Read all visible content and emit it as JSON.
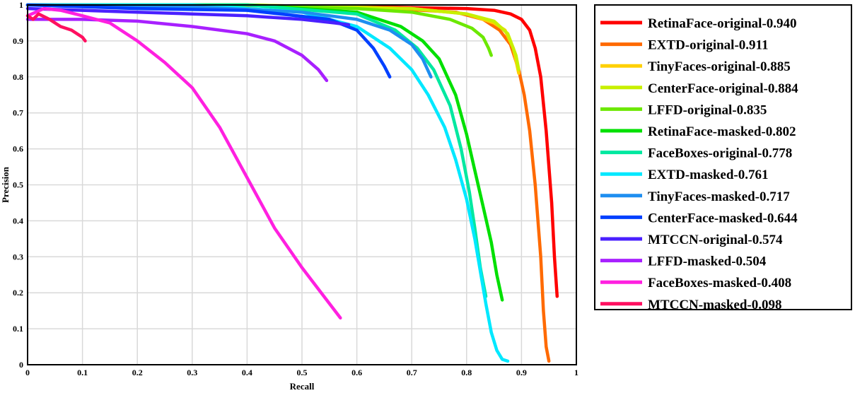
{
  "chart_data": {
    "type": "line",
    "title": "",
    "xlabel": "Recall",
    "ylabel": "Precision",
    "xlim": [
      0,
      1
    ],
    "ylim": [
      0,
      1
    ],
    "xticks": [
      "0",
      "0.1",
      "0.2",
      "0.3",
      "0.4",
      "0.5",
      "0.6",
      "0.7",
      "0.8",
      "0.9",
      "1"
    ],
    "yticks": [
      "0",
      "0.1",
      "0.2",
      "0.3",
      "0.4",
      "0.5",
      "0.6",
      "0.7",
      "0.8",
      "0.9",
      "1"
    ],
    "grid": true,
    "legend_position": "right",
    "series": [
      {
        "name": "RetinaFace-original-0.940",
        "color": "#ff0000",
        "x": [
          0.0,
          0.3,
          0.6,
          0.8,
          0.85,
          0.88,
          0.9,
          0.915,
          0.925,
          0.935,
          0.945,
          0.955,
          0.96,
          0.965
        ],
        "y": [
          1.0,
          1.0,
          0.995,
          0.99,
          0.985,
          0.975,
          0.96,
          0.93,
          0.88,
          0.8,
          0.65,
          0.45,
          0.3,
          0.19
        ]
      },
      {
        "name": "EXTD-original-0.911",
        "color": "#ff6a00",
        "x": [
          0.0,
          0.3,
          0.6,
          0.78,
          0.83,
          0.86,
          0.88,
          0.895,
          0.905,
          0.915,
          0.925,
          0.935,
          0.94,
          0.945,
          0.95
        ],
        "y": [
          1.0,
          1.0,
          0.995,
          0.98,
          0.96,
          0.93,
          0.89,
          0.82,
          0.75,
          0.65,
          0.5,
          0.3,
          0.15,
          0.05,
          0.01
        ]
      },
      {
        "name": "TinyFaces-original-0.885",
        "color": "#ffd000",
        "x": [
          0.0,
          0.4,
          0.7,
          0.8,
          0.85,
          0.87,
          0.885,
          0.895
        ],
        "y": [
          1.0,
          1.0,
          0.99,
          0.975,
          0.95,
          0.93,
          0.88,
          0.81
        ]
      },
      {
        "name": "CenterFace-original-0.884",
        "color": "#c8f000",
        "x": [
          0.0,
          0.4,
          0.7,
          0.8,
          0.85,
          0.875,
          0.89,
          0.895
        ],
        "y": [
          1.0,
          1.0,
          0.99,
          0.975,
          0.955,
          0.92,
          0.86,
          0.82
        ]
      },
      {
        "name": "LFFD-original-0.835",
        "color": "#6ce800",
        "x": [
          0.0,
          0.4,
          0.6,
          0.7,
          0.77,
          0.81,
          0.83,
          0.84,
          0.845
        ],
        "y": [
          1.0,
          1.0,
          0.99,
          0.98,
          0.96,
          0.935,
          0.91,
          0.88,
          0.86
        ]
      },
      {
        "name": "RetinaFace-masked-0.802",
        "color": "#00e000",
        "x": [
          0.0,
          0.4,
          0.6,
          0.68,
          0.72,
          0.75,
          0.78,
          0.8,
          0.815,
          0.83,
          0.845,
          0.855,
          0.865
        ],
        "y": [
          1.0,
          1.0,
          0.98,
          0.94,
          0.9,
          0.85,
          0.75,
          0.64,
          0.54,
          0.44,
          0.34,
          0.25,
          0.18
        ]
      },
      {
        "name": "FaceBoxes-original-0.778",
        "color": "#00e8a0",
        "x": [
          0.0,
          0.4,
          0.6,
          0.67,
          0.71,
          0.74,
          0.77,
          0.79,
          0.805,
          0.815,
          0.825,
          0.835
        ],
        "y": [
          1.0,
          1.0,
          0.975,
          0.93,
          0.88,
          0.82,
          0.72,
          0.6,
          0.48,
          0.38,
          0.27,
          0.19
        ]
      },
      {
        "name": "EXTD-masked-0.761",
        "color": "#00e8ff",
        "x": [
          0.0,
          0.3,
          0.5,
          0.6,
          0.66,
          0.7,
          0.73,
          0.76,
          0.78,
          0.8,
          0.815,
          0.825,
          0.835,
          0.845,
          0.855,
          0.865,
          0.875
        ],
        "y": [
          1.0,
          1.0,
          0.98,
          0.94,
          0.88,
          0.82,
          0.75,
          0.66,
          0.57,
          0.46,
          0.35,
          0.26,
          0.17,
          0.09,
          0.04,
          0.015,
          0.01
        ]
      },
      {
        "name": "TinyFaces-masked-0.717",
        "color": "#1e8ef0",
        "x": [
          0.0,
          0.3,
          0.5,
          0.6,
          0.66,
          0.7,
          0.72,
          0.735
        ],
        "y": [
          1.0,
          0.995,
          0.98,
          0.96,
          0.93,
          0.89,
          0.85,
          0.8
        ]
      },
      {
        "name": "CenterFace-masked-0.644",
        "color": "#0040ff",
        "x": [
          0.0,
          0.2,
          0.4,
          0.55,
          0.6,
          0.63,
          0.65,
          0.66
        ],
        "y": [
          1.0,
          0.99,
          0.985,
          0.96,
          0.93,
          0.88,
          0.83,
          0.8
        ]
      },
      {
        "name": "MTCCN-original-0.574",
        "color": "#4a20ff",
        "x": [
          0.0,
          0.1,
          0.2,
          0.3,
          0.4,
          0.5,
          0.56,
          0.585
        ],
        "y": [
          0.99,
          0.985,
          0.98,
          0.975,
          0.97,
          0.96,
          0.95,
          0.945
        ]
      },
      {
        "name": "LFFD-masked-0.504",
        "color": "#a820ff",
        "x": [
          0.0,
          0.05,
          0.1,
          0.2,
          0.3,
          0.4,
          0.45,
          0.5,
          0.53,
          0.545
        ],
        "y": [
          0.96,
          0.96,
          0.96,
          0.955,
          0.94,
          0.92,
          0.9,
          0.86,
          0.82,
          0.79
        ]
      },
      {
        "name": "FaceBoxes-masked-0.408",
        "color": "#ff20e0",
        "x": [
          0.0,
          0.03,
          0.06,
          0.1,
          0.15,
          0.2,
          0.25,
          0.3,
          0.35,
          0.4,
          0.45,
          0.5,
          0.54,
          0.57
        ],
        "y": [
          0.97,
          0.99,
          0.985,
          0.97,
          0.95,
          0.9,
          0.84,
          0.77,
          0.66,
          0.52,
          0.38,
          0.27,
          0.19,
          0.13
        ]
      },
      {
        "name": "MTCCN-masked-0.098",
        "color": "#ff1060",
        "x": [
          0.0,
          0.01,
          0.02,
          0.04,
          0.06,
          0.08,
          0.1,
          0.105
        ],
        "y": [
          0.97,
          0.96,
          0.975,
          0.96,
          0.94,
          0.93,
          0.91,
          0.9
        ]
      }
    ]
  }
}
